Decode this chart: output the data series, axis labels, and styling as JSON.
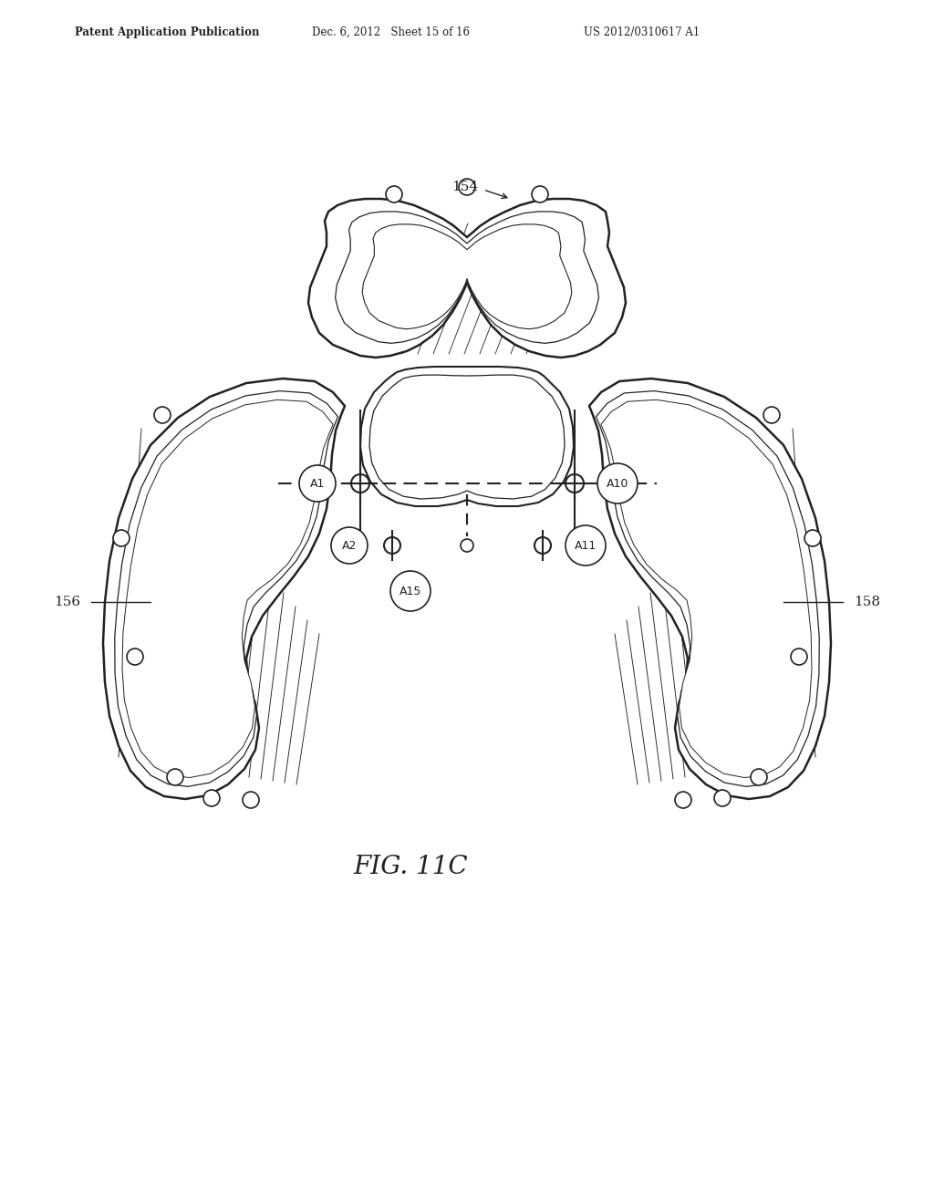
{
  "title_header_left": "Patent Application Publication",
  "title_header_mid": "Dec. 6, 2012   Sheet 15 of 16",
  "title_header_right": "US 2012/0310617 A1",
  "fig_label": "FIG. 11C",
  "label_154": "154",
  "label_156": "156",
  "label_158": "158",
  "label_A1": "A1",
  "label_A2": "A2",
  "label_A10": "A10",
  "label_A11": "A11",
  "label_A15": "A15",
  "bg_color": "#ffffff",
  "line_color": "#222222"
}
